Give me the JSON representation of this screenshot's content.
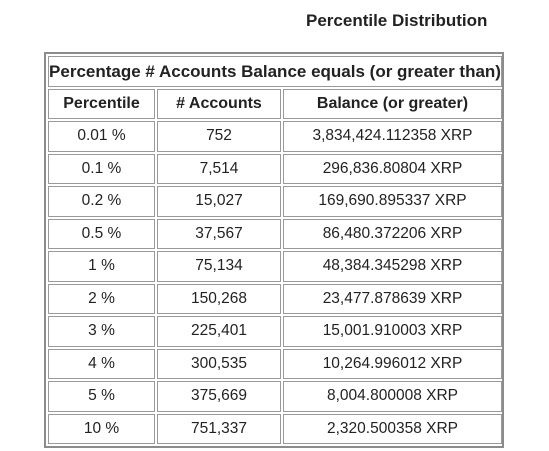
{
  "title": "Percentile Distribution",
  "table": {
    "caption": "Percentage # Accounts Balance equals (or greater than)",
    "headers": [
      "Percentile",
      "# Accounts",
      "Balance (or greater)"
    ],
    "rows": [
      [
        "0.01 %",
        "752",
        "3,834,424.112358 XRP"
      ],
      [
        "0.1 %",
        "7,514",
        "296,836.80804 XRP"
      ],
      [
        "0.2 %",
        "15,027",
        "169,690.895337 XRP"
      ],
      [
        "0.5 %",
        "37,567",
        "86,480.372206 XRP"
      ],
      [
        "1 %",
        "75,134",
        "48,384.345298 XRP"
      ],
      [
        "2 %",
        "150,268",
        "23,477.878639 XRP"
      ],
      [
        "3 %",
        "225,401",
        "15,001.910003 XRP"
      ],
      [
        "4 %",
        "300,535",
        "10,264.996012 XRP"
      ],
      [
        "5 %",
        "375,669",
        "8,004.800008 XRP"
      ],
      [
        "10 %",
        "751,337",
        "2,320.500358 XRP"
      ]
    ]
  }
}
